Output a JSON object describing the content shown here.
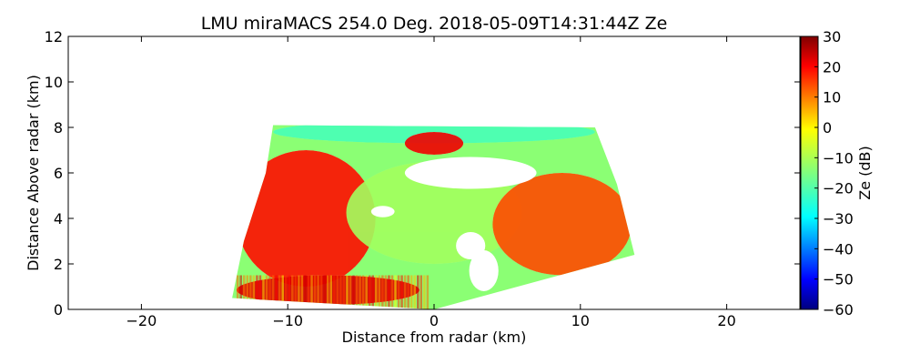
{
  "chart_data": {
    "type": "heatmap",
    "title": "LMU miraMACS 254.0 Deg. 2018-05-09T14:31:44Z  Ze",
    "xlabel": "Distance from radar (km)",
    "ylabel": "Distance Above radar  (km)",
    "xlim": [
      -25,
      25
    ],
    "ylim": [
      0,
      12
    ],
    "xticks": [
      -20,
      -10,
      0,
      10,
      20
    ],
    "yticks": [
      0,
      2,
      4,
      6,
      8,
      10,
      12
    ],
    "grid": false,
    "colorbar": {
      "label": "Ze (dB)",
      "range": [
        -60,
        30
      ],
      "ticks": [
        30,
        20,
        10,
        0,
        -10,
        -20,
        -30,
        -40,
        -50,
        -60
      ],
      "colormap": "jet"
    },
    "scan_sector": {
      "left_edge_km": [
        [
          -13.8,
          0.5
        ],
        [
          -13.0,
          3.0
        ],
        [
          -11.5,
          6.0
        ],
        [
          -11.0,
          8.1
        ]
      ],
      "right_edge_km": [
        [
          11.0,
          8.0
        ],
        [
          12.5,
          5.5
        ],
        [
          13.7,
          2.4
        ]
      ],
      "bottom_edge_km": [
        [
          -13.8,
          0.5
        ],
        [
          0,
          0
        ],
        [
          13.7,
          2.4
        ]
      ]
    },
    "reflectivity_regions_dB": [
      {
        "region": "left lower cloud",
        "x": [
          -13.5,
          -4
        ],
        "y": [
          1,
          7
        ],
        "value": 18
      },
      {
        "region": "near-surface band",
        "x": [
          -13.5,
          -1
        ],
        "y": [
          0.2,
          1.5
        ],
        "value": 22
      },
      {
        "region": "cloud top rim",
        "x": [
          -11,
          11
        ],
        "y": [
          7.3,
          8.3
        ],
        "value": -20
      },
      {
        "region": "central mid-level",
        "x": [
          -6,
          6
        ],
        "y": [
          2,
          6.5
        ],
        "value": -12
      },
      {
        "region": "right cloud",
        "x": [
          4,
          13.5
        ],
        "y": [
          1.5,
          6
        ],
        "value": 12
      },
      {
        "region": "upper core",
        "x": [
          -2,
          2
        ],
        "y": [
          6.8,
          7.8
        ],
        "value": 20
      }
    ]
  }
}
